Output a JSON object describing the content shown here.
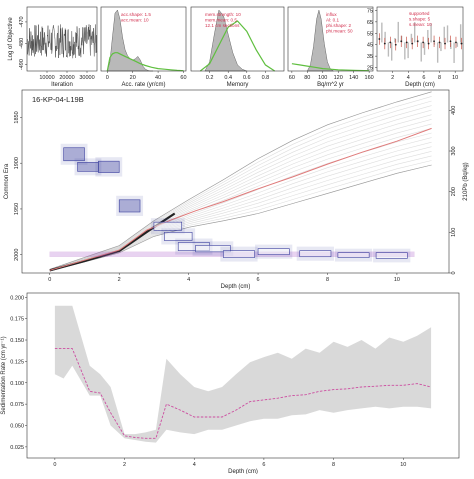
{
  "colors": {
    "prior_line": "#5fbf3f",
    "posterior_fill": "#b9b9b9",
    "age_model_median": "#e07a7a",
    "pb_box": "#3b3f9e",
    "sed_rate_median": "#cc4da0",
    "sed_rate_band": "#d9d9d9"
  },
  "chart_data": [
    {
      "id": "log_objective",
      "type": "line",
      "ylabel": "Log of Objective",
      "xlabel": "Iteration",
      "x_ticks": [
        "10000",
        "20000",
        "30000"
      ],
      "y_ticks": [
        "-470",
        "-480",
        "-490"
      ],
      "x_range": [
        0,
        35000
      ],
      "y_range": [
        -493,
        -463
      ]
    },
    {
      "id": "acc_rate",
      "type": "area",
      "xlabel": "Acc. rate (yr/cm)",
      "x_ticks": [
        "0",
        "20",
        "40",
        "60"
      ],
      "x_range": [
        -5,
        62
      ],
      "annotation": [
        "acc.shape: 1.5",
        "acc.mean: 10"
      ],
      "posterior_x": [
        0,
        2,
        4,
        6,
        8,
        10,
        12,
        14,
        16,
        18,
        20,
        22,
        24,
        26,
        28,
        30,
        32,
        34,
        36
      ],
      "posterior_y": [
        0,
        0.15,
        0.55,
        0.95,
        1.0,
        0.85,
        0.55,
        0.35,
        0.25,
        0.2,
        0.18,
        0.2,
        0.24,
        0.18,
        0.08,
        0.03,
        0.01,
        0,
        0
      ],
      "prior_x": [
        0,
        2,
        4,
        6,
        8,
        10,
        14,
        18,
        22,
        26,
        30,
        35,
        40,
        45,
        50,
        55,
        60
      ],
      "prior_y": [
        0,
        0.22,
        0.28,
        0.3,
        0.3,
        0.28,
        0.24,
        0.2,
        0.16,
        0.12,
        0.09,
        0.06,
        0.04,
        0.03,
        0.02,
        0.01,
        0.005
      ]
    },
    {
      "id": "memory",
      "type": "area",
      "xlabel": "Memory",
      "x_ticks": [
        "0.2",
        "0.4",
        "0.6",
        "0.8"
      ],
      "x_range": [
        0,
        1
      ],
      "annotation": [
        "mem.strength: 10",
        "mem.mean: 0.5",
        "12.1 cm sections"
      ],
      "posterior_x": [
        0.15,
        0.2,
        0.25,
        0.3,
        0.35,
        0.4,
        0.45,
        0.5,
        0.55,
        0.6
      ],
      "posterior_y": [
        0,
        0.15,
        0.6,
        1.0,
        0.9,
        0.6,
        0.3,
        0.1,
        0.03,
        0
      ],
      "prior_x": [
        0.1,
        0.2,
        0.3,
        0.4,
        0.5,
        0.6,
        0.7,
        0.8,
        0.9
      ],
      "prior_y": [
        0,
        0.12,
        0.42,
        0.72,
        0.82,
        0.65,
        0.35,
        0.1,
        0
      ]
    },
    {
      "id": "phi",
      "type": "area",
      "xlabel": "Bq/m^2 yr",
      "x_ticks": [
        "60",
        "80",
        "100",
        "120",
        "140",
        "160"
      ],
      "x_range": [
        55,
        165
      ],
      "annotation": [
        "influx",
        "Al: 0.1",
        "phi.shape: 2",
        "phi.mean: 50"
      ],
      "posterior_x": [
        80,
        84,
        88,
        92,
        95,
        98,
        102,
        106,
        110,
        114
      ],
      "posterior_y": [
        0,
        0.1,
        0.4,
        0.85,
        1.0,
        0.85,
        0.45,
        0.15,
        0.03,
        0
      ],
      "prior_x": [
        60,
        70,
        80,
        90,
        100,
        110,
        120,
        140,
        160
      ],
      "prior_y": [
        0.12,
        0.1,
        0.08,
        0.06,
        0.04,
        0.03,
        0.02,
        0.01,
        0.005
      ]
    },
    {
      "id": "supported",
      "type": "scatter",
      "xlabel": "Depth (cm)",
      "x_ticks": [
        "2",
        "4",
        "6",
        "8",
        "10"
      ],
      "y_ticks": [
        "25",
        "35",
        "45",
        "55",
        "65",
        "75"
      ],
      "x_range": [
        0,
        11
      ],
      "y_range": [
        22,
        78
      ],
      "annotation": [
        "supported",
        "s.shape: 5",
        "s.mean: 10"
      ],
      "x": [
        0.3,
        1,
        1.7,
        2.4,
        3.1,
        3.8,
        4.5,
        5.2,
        5.9,
        6.6,
        7.3,
        8,
        8.7,
        9.4,
        10.1,
        10.8
      ],
      "y": [
        50,
        46,
        47,
        45,
        48,
        47,
        46,
        48,
        47,
        46,
        48,
        47,
        46,
        48,
        47,
        46
      ]
    },
    {
      "id": "age_depth",
      "type": "line",
      "title": "16-KP-04-L19B",
      "xlabel": "Depth (cm)",
      "ylabel": "Common Era",
      "ylabel_right": "210Pb (Bq/kg)",
      "x_ticks": [
        "0",
        "2",
        "4",
        "6",
        "8",
        "10"
      ],
      "y_ticks": [
        "1850",
        "1900",
        "1950",
        "2000"
      ],
      "y_ticks_right": [
        "0",
        "100",
        "200",
        "300",
        "400"
      ],
      "x_range": [
        -0.8,
        11.5
      ],
      "y_range": [
        2020,
        1820
      ],
      "y_range_right": [
        0,
        450
      ],
      "median": {
        "x": [
          0,
          1,
          2,
          2.8,
          3.5,
          4.2,
          5,
          6,
          7,
          8,
          9,
          10,
          11
        ],
        "y": [
          2017,
          2006,
          1995,
          1973,
          1962,
          1952,
          1942,
          1928,
          1915,
          1901,
          1888,
          1876,
          1862
        ]
      },
      "envelope_upper": {
        "x": [
          0,
          1,
          2,
          3,
          4,
          5,
          6,
          7,
          8,
          9,
          10,
          11
        ],
        "y": [
          2016,
          2003,
          1990,
          1963,
          1940,
          1918,
          1895,
          1875,
          1858,
          1845,
          1833,
          1822
        ]
      },
      "envelope_lower": {
        "x": [
          0,
          1,
          2,
          3,
          4,
          5,
          6,
          7,
          8,
          9,
          10,
          11
        ],
        "y": [
          2018,
          2008,
          1998,
          1980,
          1970,
          1963,
          1955,
          1944,
          1933,
          1922,
          1911,
          1902
        ]
      },
      "measured_pb": [
        {
          "x0": 0.4,
          "x1": 1.0,
          "y0": 276,
          "y1": 308
        },
        {
          "x0": 0.8,
          "x1": 1.4,
          "y0": 250,
          "y1": 272
        },
        {
          "x0": 1.4,
          "x1": 2.0,
          "y0": 247,
          "y1": 275
        },
        {
          "x0": 2.0,
          "x1": 2.6,
          "y0": 150,
          "y1": 180
        },
        {
          "x0": 3.0,
          "x1": 3.8,
          "y0": 105,
          "y1": 125
        },
        {
          "x0": 3.3,
          "x1": 4.1,
          "y0": 80,
          "y1": 100
        },
        {
          "x0": 3.7,
          "x1": 4.6,
          "y0": 55,
          "y1": 75
        },
        {
          "x0": 4.2,
          "x1": 5.2,
          "y0": 52,
          "y1": 68
        },
        {
          "x0": 5.0,
          "x1": 5.9,
          "y0": 38,
          "y1": 55
        },
        {
          "x0": 6.0,
          "x1": 6.9,
          "y0": 45,
          "y1": 60
        },
        {
          "x0": 7.2,
          "x1": 8.1,
          "y0": 40,
          "y1": 55
        },
        {
          "x0": 8.3,
          "x1": 9.2,
          "y0": 38,
          "y1": 50
        },
        {
          "x0": 9.4,
          "x1": 10.3,
          "y0": 36,
          "y1": 50
        }
      ],
      "supported_pb": {
        "x0": 0,
        "x1": 10.5,
        "y0": 40,
        "y1": 52
      }
    },
    {
      "id": "sed_rate",
      "type": "area",
      "xlabel": "Depth (cm)",
      "ylabel": "Sedimentation Rate (cm yr⁻¹)",
      "x_ticks": [
        "0",
        "2",
        "4",
        "6",
        "8",
        "10"
      ],
      "y_ticks": [
        "0.200",
        "0.175",
        "0.150",
        "0.125",
        "0.100",
        "0.075",
        "0.050",
        "0.025"
      ],
      "x_range": [
        -0.8,
        11.6
      ],
      "y_range": [
        0.012,
        0.205
      ],
      "x": [
        0,
        0.25,
        0.5,
        1,
        1.3,
        1.6,
        2,
        2.3,
        2.6,
        2.9,
        3.2,
        3.6,
        4,
        4.4,
        4.8,
        5.2,
        5.6,
        6,
        6.4,
        6.8,
        7.2,
        7.6,
        8,
        8.4,
        8.8,
        9.2,
        9.6,
        10,
        10.4,
        10.8
      ],
      "median": [
        0.14,
        0.14,
        0.14,
        0.09,
        0.088,
        0.065,
        0.038,
        0.036,
        0.035,
        0.035,
        0.075,
        0.068,
        0.06,
        0.06,
        0.06,
        0.068,
        0.078,
        0.08,
        0.082,
        0.085,
        0.086,
        0.09,
        0.092,
        0.093,
        0.095,
        0.096,
        0.097,
        0.097,
        0.099,
        0.095
      ],
      "upper": [
        0.19,
        0.19,
        0.19,
        0.12,
        0.11,
        0.095,
        0.04,
        0.04,
        0.042,
        0.045,
        0.128,
        0.11,
        0.095,
        0.09,
        0.095,
        0.11,
        0.124,
        0.13,
        0.135,
        0.128,
        0.14,
        0.135,
        0.148,
        0.142,
        0.15,
        0.14,
        0.153,
        0.148,
        0.155,
        0.165
      ],
      "lower": [
        0.11,
        0.105,
        0.12,
        0.085,
        0.085,
        0.05,
        0.035,
        0.033,
        0.031,
        0.03,
        0.045,
        0.042,
        0.04,
        0.045,
        0.045,
        0.05,
        0.055,
        0.058,
        0.058,
        0.062,
        0.063,
        0.068,
        0.065,
        0.068,
        0.07,
        0.072,
        0.07,
        0.072,
        0.072,
        0.07
      ]
    }
  ]
}
